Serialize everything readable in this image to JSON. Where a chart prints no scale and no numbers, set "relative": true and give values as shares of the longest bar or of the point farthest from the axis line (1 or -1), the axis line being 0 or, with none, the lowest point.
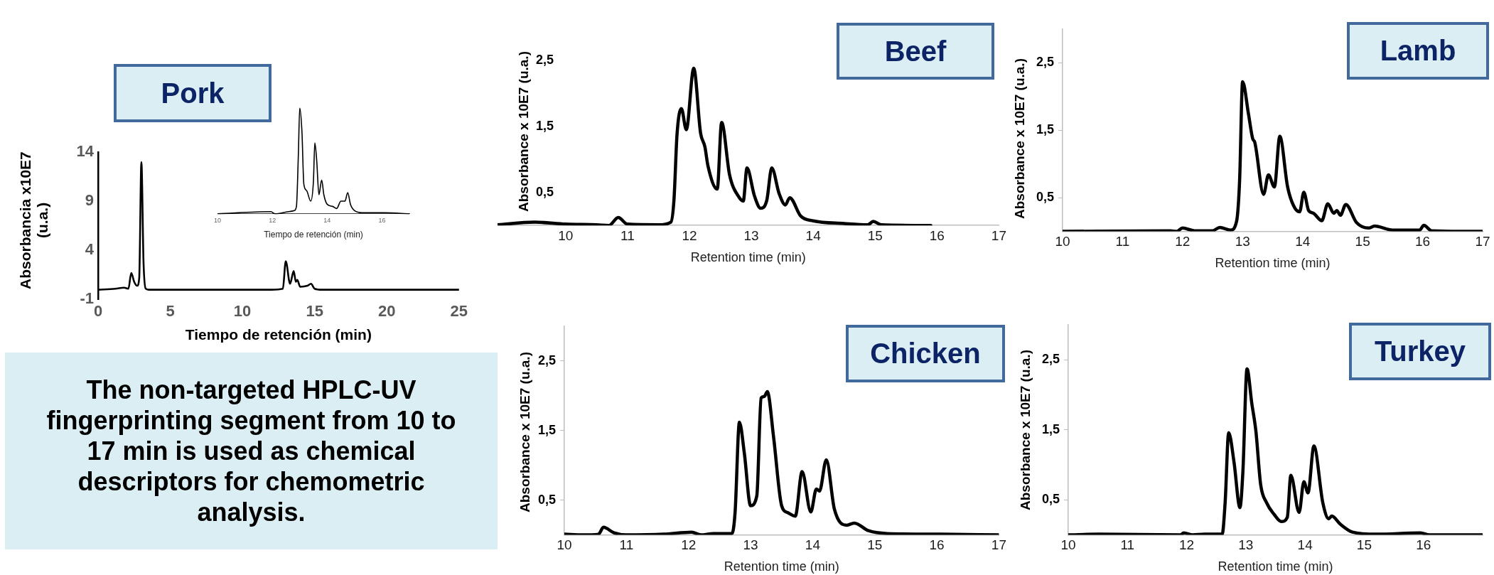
{
  "chart_data": [
    {
      "type": "line",
      "title": "Pork",
      "xlabel": "Tiempo de retención (min)",
      "ylabel": "Absorbancia  x10E7 (u.a.)",
      "xlim": [
        0,
        25
      ],
      "xticks": [
        0,
        5,
        10,
        15,
        20,
        25
      ],
      "ylim": [
        -1,
        14
      ],
      "yticks": [
        -1,
        4,
        9,
        14
      ],
      "marker": "none",
      "x": [
        0,
        1.2,
        1.8,
        2.1,
        2.3,
        2.5,
        2.7,
        2.85,
        3.0,
        3.15,
        3.3,
        3.5,
        12.0,
        12.8,
        13.0,
        13.3,
        13.55,
        13.7,
        13.8,
        14.0,
        14.5,
        14.75,
        15.0,
        15.5,
        25
      ],
      "series": [
        {
          "color": "#000000",
          "values": [
            0,
            0.1,
            0.2,
            0.1,
            1.7,
            0.8,
            0.4,
            1.2,
            13.0,
            2.7,
            0.1,
            0,
            0,
            0.1,
            2.9,
            0.6,
            1.9,
            0.8,
            1.0,
            0.3,
            0.4,
            0.6,
            0.1,
            0,
            0
          ]
        }
      ]
    },
    {
      "type": "line",
      "xlabel": "Tiempo de retención (min)",
      "xlim": [
        10,
        17
      ],
      "xticks": [
        10,
        12,
        14,
        16
      ],
      "relative": true,
      "tick_labels": "x",
      "marker": "none",
      "x": [
        10,
        11.95,
        12.1,
        12.6,
        12.8,
        12.88,
        12.95,
        13.0,
        13.08,
        13.15,
        13.25,
        13.4,
        13.5,
        13.55,
        13.62,
        13.7,
        13.8,
        13.88,
        14.0,
        14.2,
        14.35,
        14.5,
        14.65,
        14.75,
        14.85,
        15.0,
        15.3,
        16.1,
        17
      ],
      "series": [
        {
          "color": "#000000",
          "values": [
            0,
            0.02,
            0,
            0.02,
            0.03,
            0.07,
            0.56,
            1,
            0.78,
            0.28,
            0.22,
            0.12,
            0.31,
            0.67,
            0.5,
            0.18,
            0.32,
            0.18,
            0.09,
            0.07,
            0.05,
            0.12,
            0.12,
            0.2,
            0.09,
            0.03,
            0.01,
            0.01,
            0
          ]
        }
      ]
    },
    {
      "type": "line",
      "title": "Beef",
      "xlabel": "Retention time (min)",
      "ylabel": "Absorbance x 10E7 (u.a.)",
      "xlim": [
        8.9,
        17
      ],
      "xticks": [
        10,
        11,
        12,
        13,
        14,
        15,
        16,
        17
      ],
      "ylim": [
        0,
        2.5
      ],
      "yticks": [
        {
          "value": 0.5,
          "label": "0,5"
        },
        {
          "value": 1.5,
          "label": "1,5"
        },
        {
          "value": 2.5,
          "label": "2,5"
        }
      ],
      "marker": "none",
      "x": [
        8.9,
        9.5,
        10,
        10.5,
        10.7,
        10.85,
        11.0,
        11.5,
        11.7,
        11.75,
        11.8,
        11.87,
        11.95,
        12.07,
        12.18,
        12.25,
        12.3,
        12.45,
        12.52,
        12.65,
        12.8,
        12.87,
        12.93,
        13.05,
        13.15,
        13.25,
        13.33,
        13.45,
        13.55,
        13.62,
        13.8,
        14.0,
        14.5,
        14.88,
        14.97,
        15.1,
        15.9
      ],
      "series": [
        {
          "color": "#000000",
          "values": [
            0.01,
            0.05,
            0.02,
            0.01,
            0,
            0.12,
            0.02,
            0.01,
            0.05,
            0.38,
            1.38,
            1.77,
            1.45,
            2.38,
            1.4,
            1.19,
            0.9,
            0.55,
            1.56,
            0.76,
            0.43,
            0.37,
            0.87,
            0.45,
            0.26,
            0.38,
            0.87,
            0.48,
            0.31,
            0.42,
            0.14,
            0.07,
            0.03,
            0.01,
            0.06,
            0.01,
            0
          ]
        }
      ]
    },
    {
      "type": "line",
      "title": "Lamb",
      "xlabel": "Retention time (min)",
      "ylabel": "Absorbance x 10E7 (u.a.)",
      "xlim": [
        10,
        17
      ],
      "xticks": [
        10,
        11,
        12,
        13,
        14,
        15,
        16,
        17
      ],
      "ylim": [
        0,
        3
      ],
      "yticks": [
        {
          "value": 0.5,
          "label": "0,5"
        },
        {
          "value": 1.5,
          "label": "1,5"
        },
        {
          "value": 2.5,
          "label": "2,5"
        }
      ],
      "marker": "none",
      "x": [
        10,
        11.8,
        11.9,
        12.0,
        12.2,
        12.5,
        12.62,
        12.8,
        12.9,
        12.95,
        13.0,
        13.1,
        13.17,
        13.2,
        13.35,
        13.43,
        13.53,
        13.62,
        13.75,
        13.85,
        13.95,
        14.02,
        14.1,
        14.18,
        14.32,
        14.42,
        14.52,
        14.57,
        14.63,
        14.72,
        14.9,
        15.1,
        15.2,
        15.5,
        15.95,
        16.02,
        16.15,
        17
      ],
      "series": [
        {
          "color": "#000000",
          "values": [
            0,
            0.01,
            0,
            0.05,
            0.01,
            0.01,
            0.06,
            0.02,
            0.15,
            0.75,
            2.22,
            1.73,
            1.37,
            1.33,
            0.55,
            0.84,
            0.66,
            1.41,
            0.66,
            0.38,
            0.29,
            0.58,
            0.31,
            0.27,
            0.16,
            0.41,
            0.27,
            0.31,
            0.24,
            0.4,
            0.13,
            0.05,
            0.08,
            0.02,
            0.02,
            0.09,
            0.01,
            0
          ]
        }
      ]
    },
    {
      "type": "other",
      "title": "The non-targeted HPLC-UV fingerprinting segment from 10 to 17 min is used as chemical descriptors for chemometric analysis."
    },
    {
      "type": "line",
      "title": "Chicken",
      "xlabel": "Retention time (min)",
      "ylabel": "Absorbance x 10E7 (u.a.)",
      "xlim": [
        10,
        17
      ],
      "xticks": [
        10,
        11,
        12,
        13,
        14,
        15,
        16,
        17
      ],
      "ylim": [
        0,
        3
      ],
      "yticks": [
        {
          "value": 0.5,
          "label": "0,5"
        },
        {
          "value": 1.5,
          "label": "1,5"
        },
        {
          "value": 2.5,
          "label": "2,5"
        }
      ],
      "marker": "none",
      "x": [
        10,
        10.3,
        10.55,
        10.63,
        10.8,
        11.0,
        11.6,
        12.05,
        12.2,
        12.4,
        12.7,
        12.75,
        12.82,
        12.9,
        13.0,
        13.1,
        13.17,
        13.22,
        13.27,
        13.37,
        13.5,
        13.6,
        13.72,
        13.83,
        13.97,
        14.06,
        14.11,
        14.22,
        14.35,
        14.55,
        14.67,
        14.9,
        15.2,
        16.05,
        17
      ],
      "series": [
        {
          "color": "#000000",
          "values": [
            0.01,
            0,
            0.01,
            0.11,
            0.03,
            0,
            0.01,
            0.04,
            0,
            0.02,
            0.02,
            0.32,
            1.62,
            1.17,
            0.42,
            0.56,
            1.97,
            1.99,
            2.06,
            1.41,
            0.42,
            0.32,
            0.27,
            0.91,
            0.33,
            0.66,
            0.63,
            1.08,
            0.37,
            0.14,
            0.17,
            0.06,
            0.02,
            0.01,
            0
          ]
        }
      ]
    },
    {
      "type": "line",
      "title": "Turkey",
      "xlabel": "Retention time (min)",
      "ylabel": "Absorbance x 10E7 (u.a.)",
      "xlim": [
        10,
        17
      ],
      "xticks": [
        10,
        11,
        12,
        13,
        14,
        15,
        16
      ],
      "ylim": [
        0,
        3
      ],
      "yticks": [
        {
          "value": 0.5,
          "label": "0,5"
        },
        {
          "value": 1.5,
          "label": "1,5"
        },
        {
          "value": 2.5,
          "label": "2,5"
        }
      ],
      "marker": "none",
      "x": [
        10,
        10.5,
        11.9,
        11.95,
        12.1,
        12.3,
        12.6,
        12.65,
        12.71,
        12.8,
        12.9,
        12.95,
        13.02,
        13.1,
        13.17,
        13.25,
        13.35,
        13.48,
        13.6,
        13.7,
        13.76,
        13.9,
        13.98,
        14.05,
        14.15,
        14.3,
        14.4,
        14.45,
        14.6,
        14.8,
        15.2,
        15.95,
        16.1,
        17
      ],
      "series": [
        {
          "color": "#000000",
          "values": [
            0,
            0.01,
            0,
            0.03,
            0,
            0.01,
            0.01,
            0.46,
            1.46,
            1.04,
            0.39,
            0.9,
            2.37,
            1.88,
            1.48,
            0.72,
            0.46,
            0.29,
            0.19,
            0.25,
            0.85,
            0.32,
            0.76,
            0.6,
            1.27,
            0.46,
            0.23,
            0.27,
            0.15,
            0.04,
            0.01,
            0.03,
            0,
            0
          ]
        }
      ]
    }
  ]
}
